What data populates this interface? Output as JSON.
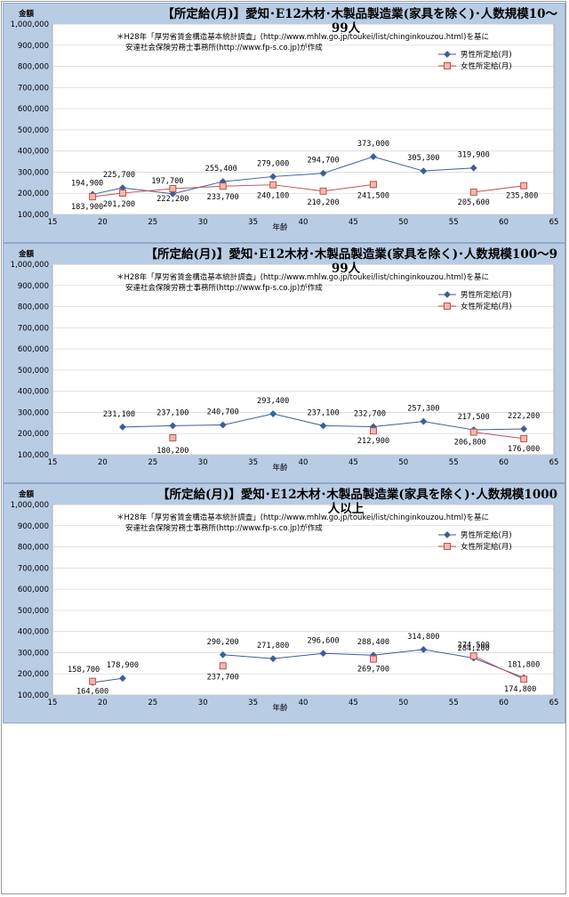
{
  "chart_data": [
    {
      "type": "line",
      "title": "【所定給(月)】愛知･E12木材･木製品製造業(家具を除く)･人数規模10～99人",
      "note_line1": "＊H28年「厚労省賃金構造基本統計調査」(http://www.mhlw.go.jp/toukei/list/chinginkouzou.html)を基に",
      "note_line2": "安達社会保険労務士事務所(http://www.fp-s.co.jp)が作成",
      "ylabel": "金額",
      "xlabel": "年齢",
      "xlim": [
        15,
        65
      ],
      "ylim": [
        100000,
        1000000
      ],
      "x_ticks": [
        "15",
        "20",
        "25",
        "30",
        "35",
        "40",
        "45",
        "50",
        "55",
        "60",
        "65"
      ],
      "y_ticks": [
        "100,000",
        "200,000",
        "300,000",
        "400,000",
        "500,000",
        "600,000",
        "700,000",
        "800,000",
        "900,000",
        "1,000,000"
      ],
      "legend_position": "top-right",
      "series": [
        {
          "name": "男性所定給(月)",
          "color": "#3b5f9a",
          "marker": "diamond",
          "x": [
            19,
            22,
            27,
            32,
            37,
            42,
            47,
            52,
            57
          ],
          "y": [
            194900,
            225700,
            197700,
            255400,
            279000,
            294700,
            373000,
            305300,
            319900
          ],
          "labels": [
            "194,900",
            "225,700",
            "197,700",
            "255,400",
            "279,000",
            "294,700",
            "373,000",
            "305,300",
            "319,900"
          ]
        },
        {
          "name": "女性所定給(月)",
          "color": "#c0504d",
          "marker": "square",
          "x": [
            19,
            22,
            27,
            32,
            37,
            42,
            47,
            57,
            62
          ],
          "y": [
            183900,
            201200,
            222200,
            233700,
            240100,
            210200,
            241500,
            205600,
            235800
          ],
          "labels": [
            "183,900",
            "201,200",
            "222,200",
            "233,700",
            "240,100",
            "210,200",
            "241,500",
            "205,600",
            "235,800"
          ],
          "connect": [
            true,
            true,
            true,
            true,
            true,
            true,
            false,
            true
          ]
        }
      ]
    },
    {
      "type": "line",
      "title": "【所定給(月)】愛知･E12木材･木製品製造業(家具を除く)･人数規模100～999人",
      "note_line1": "＊H28年「厚労省賃金構造基本統計調査」(http://www.mhlw.go.jp/toukei/list/chinginkouzou.html)を基に",
      "note_line2": "安達社会保険労務士事務所(http://www.fp-s.co.jp)が作成",
      "ylabel": "金額",
      "xlabel": "年齢",
      "xlim": [
        15,
        65
      ],
      "ylim": [
        100000,
        1000000
      ],
      "x_ticks": [
        "15",
        "20",
        "25",
        "30",
        "35",
        "40",
        "45",
        "50",
        "55",
        "60",
        "65"
      ],
      "y_ticks": [
        "100,000",
        "200,000",
        "300,000",
        "400,000",
        "500,000",
        "600,000",
        "700,000",
        "800,000",
        "900,000",
        "1,000,000"
      ],
      "legend_position": "top-right",
      "series": [
        {
          "name": "男性所定給(月)",
          "color": "#3b5f9a",
          "marker": "diamond",
          "x": [
            22,
            27,
            32,
            37,
            42,
            47,
            52,
            57,
            62
          ],
          "y": [
            231100,
            237100,
            240700,
            293400,
            237100,
            232700,
            257300,
            217500,
            222200
          ],
          "labels": [
            "231,100",
            "237,100",
            "240,700",
            "293,400",
            "237,100",
            "232,700",
            "257,300",
            "217,500",
            "222,200"
          ]
        },
        {
          "name": "女性所定給(月)",
          "color": "#c0504d",
          "marker": "square",
          "x": [
            27,
            47,
            57,
            62
          ],
          "y": [
            180200,
            212900,
            206800,
            176000
          ],
          "labels": [
            "180,200",
            "212,900",
            "206,800",
            "176,000"
          ],
          "connect": [
            false,
            false,
            true
          ]
        }
      ]
    },
    {
      "type": "line",
      "title": "【所定給(月)】愛知･E12木材･木製品製造業(家具を除く)･人数規模1000人以上",
      "note_line1": "＊H28年「厚労省賃金構造基本統計調査」(http://www.mhlw.go.jp/toukei/list/chinginkouzou.html)を基に",
      "note_line2": "安達社会保険労務士事務所(http://www.fp-s.co.jp)が作成",
      "ylabel": "金額",
      "xlabel": "年齢",
      "xlim": [
        15,
        65
      ],
      "ylim": [
        100000,
        1000000
      ],
      "x_ticks": [
        "15",
        "20",
        "25",
        "30",
        "35",
        "40",
        "45",
        "50",
        "55",
        "60",
        "65"
      ],
      "y_ticks": [
        "100,000",
        "200,000",
        "300,000",
        "400,000",
        "500,000",
        "600,000",
        "700,000",
        "800,000",
        "900,000",
        "1,000,000"
      ],
      "legend_position": "top-right",
      "series": [
        {
          "name": "男性所定給(月)",
          "color": "#3b5f9a",
          "marker": "diamond",
          "x": [
            19,
            22,
            32,
            37,
            42,
            47,
            52,
            57,
            62
          ],
          "y": [
            158700,
            178900,
            290200,
            271800,
            296600,
            288400,
            314800,
            274500,
            181800
          ],
          "labels": [
            "158,700",
            "178,900",
            "290,200",
            "271,800",
            "296,600",
            "288,400",
            "314,800",
            "274,500",
            "181,800"
          ],
          "connect": [
            true,
            false,
            true,
            true,
            true,
            true,
            true,
            true
          ]
        },
        {
          "name": "女性所定給(月)",
          "color": "#c0504d",
          "marker": "square",
          "x": [
            19,
            32,
            47,
            57,
            62
          ],
          "y": [
            164600,
            237700,
            269700,
            284200,
            174800
          ],
          "labels": [
            "164,600",
            "237,700",
            "269,700",
            "284,200",
            "174,800"
          ],
          "connect": [
            false,
            false,
            false,
            true
          ]
        }
      ]
    }
  ]
}
